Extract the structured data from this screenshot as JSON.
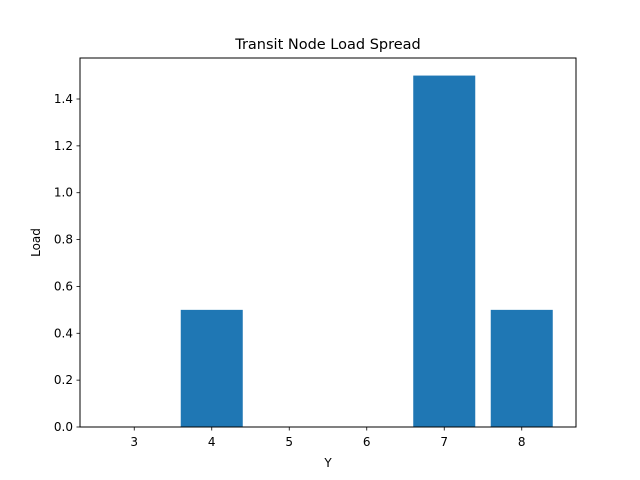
{
  "chart_data": {
    "type": "bar",
    "title": "Transit Node Load Spread",
    "xlabel": "Y",
    "ylabel": "Load",
    "categories": [
      3,
      4,
      5,
      6,
      7,
      8
    ],
    "values": [
      0,
      0.5,
      0,
      0,
      1.5,
      0.5
    ],
    "x_tick_labels": [
      "3",
      "4",
      "5",
      "6",
      "7",
      "8"
    ],
    "y_tick_labels": [
      "0.0",
      "0.2",
      "0.4",
      "0.6",
      "0.8",
      "1.0",
      "1.2",
      "1.4"
    ],
    "y_ticks": [
      0,
      0.2,
      0.4,
      0.6,
      0.8,
      1.0,
      1.2,
      1.4
    ],
    "xlim": [
      2.3,
      8.7
    ],
    "ylim": [
      0,
      1.575
    ],
    "grid": false,
    "legend": "none",
    "bar_color": "#1f77b4"
  }
}
